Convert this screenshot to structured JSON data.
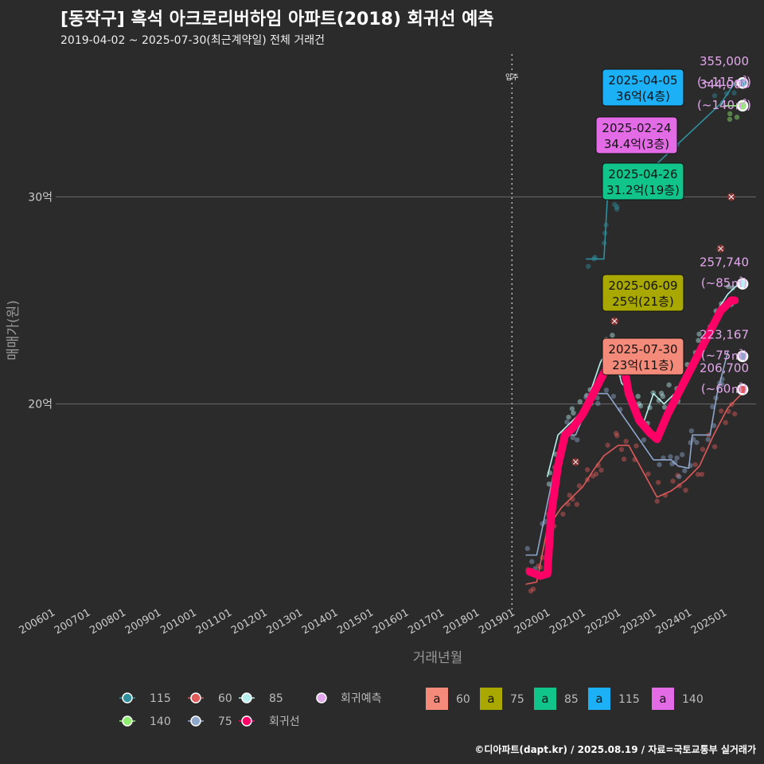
{
  "title": "[동작구] 흑석 아크로리버하임 아파트(2018) 회귀선 예측",
  "subtitle": "2019-04-02 ~ 2025-07-30(최근계약일) 전체 거래건",
  "credit": "©디아파트(dapt.kr) / 2025.08.19 / 자료=국토교통부 실거래가",
  "colors": {
    "background": "#2b2b2b",
    "regression": "#ff0066",
    "s115": "#2f8f9d",
    "s60": "#e05a5a",
    "s85": "#b7f0ee",
    "s140": "#90ee70",
    "s75": "#8fa6cc",
    "predict": "#e3a8ec"
  },
  "chart_data": {
    "type": "line",
    "xlabel": "거래년월",
    "ylabel": "매매가(원)",
    "x_tick_labels": [
      "200601",
      "200701",
      "200801",
      "200901",
      "201001",
      "201101",
      "201201",
      "201301",
      "201401",
      "201501",
      "201601",
      "201701",
      "201801",
      "201901",
      "202001",
      "202101",
      "202201",
      "202301",
      "202401",
      "202501"
    ],
    "x_range": [
      2006.0,
      2025.8
    ],
    "y_ticks": [
      {
        "value": 20,
        "label": "20억"
      },
      {
        "value": 30,
        "label": "30억"
      }
    ],
    "y_range": [
      10.3,
      37.2
    ],
    "grid": true,
    "vline": {
      "x": 2018.9,
      "label": "입주"
    },
    "series": [
      {
        "name": "115",
        "color": "#2f8f9d",
        "points": [
          [
            2021.0,
            27.0
          ],
          [
            2021.5,
            27.0
          ],
          [
            2021.6,
            30.0
          ],
          [
            2022.0,
            30.0
          ],
          [
            2024.8,
            34.5
          ],
          [
            2025.2,
            35.5
          ]
        ]
      },
      {
        "name": "60",
        "color": "#e05a5a",
        "points": [
          [
            2019.3,
            11.3
          ],
          [
            2019.6,
            11.4
          ],
          [
            2019.9,
            14.0
          ],
          [
            2020.3,
            15.0
          ],
          [
            2020.6,
            15.5
          ],
          [
            2020.9,
            16.0
          ],
          [
            2021.2,
            16.8
          ],
          [
            2021.5,
            17.5
          ],
          [
            2021.9,
            18.0
          ],
          [
            2022.2,
            18.0
          ],
          [
            2023.0,
            15.5
          ],
          [
            2023.4,
            15.8
          ],
          [
            2023.8,
            16.3
          ],
          [
            2024.2,
            17.0
          ],
          [
            2024.6,
            18.5
          ],
          [
            2025.0,
            19.8
          ],
          [
            2025.4,
            20.5
          ]
        ]
      },
      {
        "name": "85",
        "color": "#b7f0ee",
        "points": [
          [
            2019.9,
            16.5
          ],
          [
            2020.2,
            18.5
          ],
          [
            2020.5,
            19.0
          ],
          [
            2020.8,
            19.5
          ],
          [
            2021.1,
            20.5
          ],
          [
            2021.4,
            22.0
          ],
          [
            2021.7,
            23.0
          ],
          [
            2022.0,
            21.0
          ],
          [
            2022.3,
            20.5
          ],
          [
            2022.6,
            19.0
          ],
          [
            2022.9,
            20.5
          ],
          [
            2023.2,
            20.0
          ],
          [
            2023.5,
            20.5
          ],
          [
            2023.8,
            21.5
          ],
          [
            2024.1,
            22.5
          ],
          [
            2024.4,
            23.5
          ],
          [
            2024.7,
            24.5
          ],
          [
            2025.0,
            25.3
          ],
          [
            2025.3,
            25.8
          ]
        ]
      },
      {
        "name": "140",
        "color": "#90ee70",
        "points": [
          [
            2024.9,
            34.4
          ],
          [
            2025.3,
            34.4
          ]
        ]
      },
      {
        "name": "75",
        "color": "#8fa6cc",
        "points": [
          [
            2019.3,
            12.7
          ],
          [
            2019.6,
            12.7
          ],
          [
            2020.3,
            18.5
          ],
          [
            2020.7,
            18.5
          ],
          [
            2021.2,
            20.5
          ],
          [
            2021.6,
            20.5
          ],
          [
            2022.9,
            17.3
          ],
          [
            2023.4,
            17.3
          ],
          [
            2023.6,
            17.0
          ],
          [
            2023.9,
            16.9
          ],
          [
            2024.0,
            18.5
          ],
          [
            2024.5,
            18.5
          ],
          [
            2024.7,
            20.5
          ],
          [
            2025.0,
            22.5
          ]
        ]
      },
      {
        "name": "회귀선",
        "color": "#ff0066",
        "points": [
          [
            2019.4,
            11.9
          ],
          [
            2019.7,
            11.7
          ],
          [
            2019.9,
            11.8
          ],
          [
            2020.0,
            14.5
          ],
          [
            2020.2,
            17.0
          ],
          [
            2020.4,
            18.5
          ],
          [
            2020.6,
            18.8
          ],
          [
            2020.9,
            19.5
          ],
          [
            2021.2,
            20.5
          ],
          [
            2021.5,
            21.5
          ],
          [
            2021.8,
            22.3
          ],
          [
            2022.0,
            22.5
          ],
          [
            2022.2,
            20.5
          ],
          [
            2022.5,
            19.2
          ],
          [
            2022.8,
            18.6
          ],
          [
            2023.0,
            18.3
          ],
          [
            2023.3,
            19.5
          ],
          [
            2023.6,
            20.5
          ],
          [
            2023.9,
            21.5
          ],
          [
            2024.2,
            22.5
          ],
          [
            2024.5,
            23.5
          ],
          [
            2024.8,
            24.5
          ],
          [
            2025.1,
            25.0
          ],
          [
            2025.2,
            25.0
          ]
        ]
      }
    ],
    "predictions": [
      {
        "series": "115",
        "price": "355,000",
        "area": "(~115㎡)",
        "y": 35.5
      },
      {
        "series": "140",
        "price": "344,000",
        "area": "(~140㎡)",
        "y": 34.4
      },
      {
        "series": "85",
        "price": "257,740",
        "area": "(~85㎡)",
        "y": 25.8
      },
      {
        "series": "75",
        "price": "223,167",
        "area": "(~75㎡)",
        "y": 22.3
      },
      {
        "series": "60",
        "price": "206,700",
        "area": "(~60㎡)",
        "y": 20.7
      }
    ],
    "callouts": [
      {
        "series": "115",
        "date": "2025-04-05",
        "price": "36억(4층)",
        "bg": "#1cb0f6"
      },
      {
        "series": "140",
        "date": "2025-02-24",
        "price": "34.4억(3층)",
        "bg": "#e36be6"
      },
      {
        "series": "85",
        "date": "2025-04-26",
        "price": "31.2억(19층)",
        "bg": "#10c48a"
      },
      {
        "series": "75",
        "date": "2025-06-09",
        "price": "25억(21층)",
        "bg": "#a8a800"
      },
      {
        "series": "60",
        "date": "2025-07-30",
        "price": "23억(11층)",
        "bg": "#f38a7a"
      }
    ],
    "cancelled_marks": [
      [
        2021.8,
        24.0
      ],
      [
        2022.2,
        24.9
      ],
      [
        2020.7,
        17.2
      ],
      [
        2024.8,
        27.5
      ],
      [
        2025.1,
        30.0
      ]
    ]
  },
  "legend": {
    "line_items": [
      {
        "label": "115",
        "color": "#2f8f9d"
      },
      {
        "label": "60",
        "color": "#e05a5a"
      },
      {
        "label": "85",
        "color": "#b7f0ee"
      },
      {
        "label": "140",
        "color": "#90ee70"
      },
      {
        "label": "75",
        "color": "#8fa6cc"
      },
      {
        "label": "회귀선",
        "color": "#ff0066"
      }
    ],
    "predict_label": "회귀예측",
    "predict_color": "#e3a8ec",
    "box_glyph": "a",
    "box_items": [
      {
        "label": "60",
        "color": "#f38a7a"
      },
      {
        "label": "75",
        "color": "#a8a800"
      },
      {
        "label": "85",
        "color": "#10c48a"
      },
      {
        "label": "115",
        "color": "#1cb0f6"
      },
      {
        "label": "140",
        "color": "#e36be6"
      }
    ]
  }
}
